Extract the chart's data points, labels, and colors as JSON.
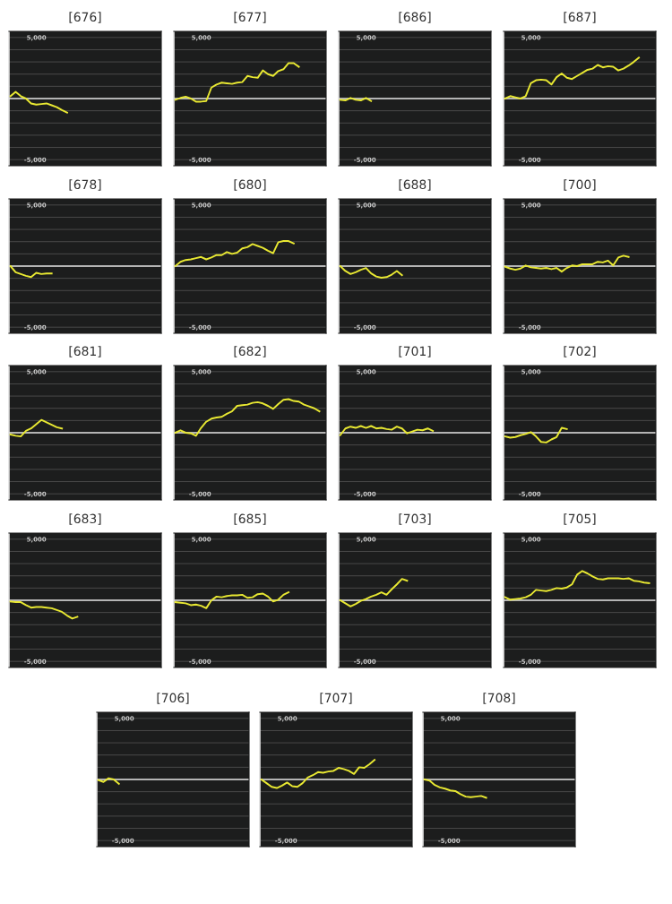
{
  "chart_data": [
    {
      "type": "line",
      "title": "[676]",
      "color": "#e8e832",
      "categories": [
        null,
        null,
        null,
        null,
        null,
        null,
        null,
        null,
        null,
        null,
        null,
        null,
        null,
        null,
        null,
        null,
        null,
        null,
        null,
        null,
        null,
        null,
        null,
        null,
        null,
        null,
        null,
        null,
        null,
        null
      ],
      "values": [
        200,
        550,
        200,
        0,
        -400,
        -500,
        -450,
        -400,
        -550,
        -700,
        -950,
        -1150,
        null,
        null,
        null,
        null,
        null,
        null,
        null,
        null,
        null,
        null,
        null,
        null,
        null,
        null,
        null,
        null,
        null,
        null
      ],
      "ylim": [
        -5500,
        5500
      ],
      "yticks": [
        {
          "value": -5000,
          "label": "-5,000"
        },
        {
          "value": -4000,
          "label": null
        },
        {
          "value": -3000,
          "label": null
        },
        {
          "value": -2000,
          "label": null
        },
        {
          "value": -1000,
          "label": null
        },
        {
          "value": 0,
          "label": null
        },
        {
          "value": 1000,
          "label": null
        },
        {
          "value": 2000,
          "label": null
        },
        {
          "value": 3000,
          "label": null
        },
        {
          "value": 4000,
          "label": null
        },
        {
          "value": 5000,
          "label": "5,000"
        }
      ],
      "grid": "y",
      "tick_labels": "y",
      "ref_lines": [
        {
          "axis": "y",
          "value": 0,
          "color": "#e0e0e0"
        }
      ]
    },
    {
      "type": "line",
      "title": "[677]",
      "color": "#e8e832",
      "categories": [
        null,
        null,
        null,
        null,
        null,
        null,
        null,
        null,
        null,
        null,
        null,
        null,
        null,
        null,
        null,
        null,
        null,
        null,
        null,
        null,
        null,
        null,
        null,
        null,
        null,
        null,
        null,
        null,
        null,
        null
      ],
      "values": [
        -100,
        50,
        150,
        0,
        -250,
        -250,
        -200,
        900,
        1150,
        1300,
        1250,
        1200,
        1300,
        1350,
        1850,
        1750,
        1700,
        2300,
        2000,
        1850,
        2250,
        2400,
        2900,
        2900,
        2600,
        null,
        null,
        null,
        null,
        null
      ],
      "ylim": [
        -5500,
        5500
      ],
      "yticks": [
        {
          "value": -5000,
          "label": "-5,000"
        },
        {
          "value": -4000,
          "label": null
        },
        {
          "value": -3000,
          "label": null
        },
        {
          "value": -2000,
          "label": null
        },
        {
          "value": -1000,
          "label": null
        },
        {
          "value": 0,
          "label": null
        },
        {
          "value": 1000,
          "label": null
        },
        {
          "value": 2000,
          "label": null
        },
        {
          "value": 3000,
          "label": null
        },
        {
          "value": 4000,
          "label": null
        },
        {
          "value": 5000,
          "label": "5,000"
        }
      ],
      "grid": "y",
      "tick_labels": "y",
      "ref_lines": [
        {
          "axis": "y",
          "value": 0,
          "color": "#e0e0e0"
        }
      ]
    },
    {
      "type": "line",
      "title": "[686]",
      "color": "#e8e832",
      "categories": [
        null,
        null,
        null,
        null,
        null,
        null,
        null,
        null,
        null,
        null,
        null,
        null,
        null,
        null,
        null,
        null,
        null,
        null,
        null,
        null,
        null,
        null,
        null,
        null,
        null,
        null,
        null,
        null,
        null,
        null
      ],
      "values": [
        -100,
        -150,
        50,
        -100,
        -150,
        50,
        -200,
        null,
        null,
        null,
        null,
        null,
        null,
        null,
        null,
        null,
        null,
        null,
        null,
        null,
        null,
        null,
        null,
        null,
        null,
        null,
        null,
        null,
        null,
        null
      ],
      "ylim": [
        -5500,
        5500
      ],
      "yticks": [
        {
          "value": -5000,
          "label": "-5,000"
        },
        {
          "value": -4000,
          "label": null
        },
        {
          "value": -3000,
          "label": null
        },
        {
          "value": -2000,
          "label": null
        },
        {
          "value": -1000,
          "label": null
        },
        {
          "value": 0,
          "label": null
        },
        {
          "value": 1000,
          "label": null
        },
        {
          "value": 2000,
          "label": null
        },
        {
          "value": 3000,
          "label": null
        },
        {
          "value": 4000,
          "label": null
        },
        {
          "value": 5000,
          "label": "5,000"
        }
      ],
      "grid": "y",
      "tick_labels": "y",
      "ref_lines": [
        {
          "axis": "y",
          "value": 0,
          "color": "#e0e0e0"
        }
      ]
    },
    {
      "type": "line",
      "title": "[687]",
      "color": "#e8e832",
      "categories": [
        null,
        null,
        null,
        null,
        null,
        null,
        null,
        null,
        null,
        null,
        null,
        null,
        null,
        null,
        null,
        null,
        null,
        null,
        null,
        null,
        null,
        null,
        null,
        null,
        null,
        null,
        null,
        null,
        null,
        null
      ],
      "values": [
        0,
        200,
        100,
        0,
        200,
        1250,
        1500,
        1550,
        1500,
        1150,
        1750,
        2050,
        1700,
        1600,
        1850,
        2100,
        2350,
        2450,
        2750,
        2550,
        2650,
        2600,
        2300,
        2450,
        2700,
        3000,
        3350,
        null,
        null,
        null
      ],
      "ylim": [
        -5500,
        5500
      ],
      "yticks": [
        {
          "value": -5000,
          "label": "-5,000"
        },
        {
          "value": -4000,
          "label": null
        },
        {
          "value": -3000,
          "label": null
        },
        {
          "value": -2000,
          "label": null
        },
        {
          "value": -1000,
          "label": null
        },
        {
          "value": 0,
          "label": null
        },
        {
          "value": 1000,
          "label": null
        },
        {
          "value": 2000,
          "label": null
        },
        {
          "value": 3000,
          "label": null
        },
        {
          "value": 4000,
          "label": null
        },
        {
          "value": 5000,
          "label": "5,000"
        }
      ],
      "grid": "y",
      "tick_labels": "y",
      "ref_lines": [
        {
          "axis": "y",
          "value": 0,
          "color": "#e0e0e0"
        }
      ]
    },
    {
      "type": "line",
      "title": "[678]",
      "color": "#e8e832",
      "categories": [
        null,
        null,
        null,
        null,
        null,
        null,
        null,
        null,
        null,
        null,
        null,
        null,
        null,
        null,
        null,
        null,
        null,
        null,
        null,
        null,
        null,
        null,
        null,
        null,
        null,
        null,
        null,
        null,
        null,
        null
      ],
      "values": [
        0,
        -500,
        -650,
        -800,
        -900,
        -550,
        -650,
        -600,
        -600,
        null,
        null,
        null,
        null,
        null,
        null,
        null,
        null,
        null,
        null,
        null,
        null,
        null,
        null,
        null,
        null,
        null,
        null,
        null,
        null,
        null
      ],
      "ylim": [
        -5500,
        5500
      ],
      "yticks": [
        {
          "value": -5000,
          "label": "-5,000"
        },
        {
          "value": -4000,
          "label": null
        },
        {
          "value": -3000,
          "label": null
        },
        {
          "value": -2000,
          "label": null
        },
        {
          "value": -1000,
          "label": null
        },
        {
          "value": 0,
          "label": null
        },
        {
          "value": 1000,
          "label": null
        },
        {
          "value": 2000,
          "label": null
        },
        {
          "value": 3000,
          "label": null
        },
        {
          "value": 4000,
          "label": null
        },
        {
          "value": 5000,
          "label": "5,000"
        }
      ],
      "grid": "y",
      "tick_labels": "y",
      "ref_lines": [
        {
          "axis": "y",
          "value": 0,
          "color": "#e0e0e0"
        }
      ]
    },
    {
      "type": "line",
      "title": "[680]",
      "color": "#e8e832",
      "categories": [
        null,
        null,
        null,
        null,
        null,
        null,
        null,
        null,
        null,
        null,
        null,
        null,
        null,
        null,
        null,
        null,
        null,
        null,
        null,
        null,
        null,
        null,
        null,
        null,
        null,
        null,
        null,
        null,
        null,
        null
      ],
      "values": [
        0,
        350,
        500,
        550,
        650,
        750,
        550,
        700,
        900,
        900,
        1150,
        1000,
        1100,
        1450,
        1550,
        1800,
        1650,
        1500,
        1250,
        1050,
        1950,
        2050,
        2050,
        1850,
        null,
        null,
        null,
        null,
        null,
        null
      ],
      "ylim": [
        -5500,
        5500
      ],
      "yticks": [
        {
          "value": -5000,
          "label": "-5,000"
        },
        {
          "value": -4000,
          "label": null
        },
        {
          "value": -3000,
          "label": null
        },
        {
          "value": -2000,
          "label": null
        },
        {
          "value": -1000,
          "label": null
        },
        {
          "value": 0,
          "label": null
        },
        {
          "value": 1000,
          "label": null
        },
        {
          "value": 2000,
          "label": null
        },
        {
          "value": 3000,
          "label": null
        },
        {
          "value": 4000,
          "label": null
        },
        {
          "value": 5000,
          "label": "5,000"
        }
      ],
      "grid": "y",
      "tick_labels": "y",
      "ref_lines": [
        {
          "axis": "y",
          "value": 0,
          "color": "#e0e0e0"
        }
      ]
    },
    {
      "type": "line",
      "title": "[688]",
      "color": "#e8e832",
      "categories": [
        null,
        null,
        null,
        null,
        null,
        null,
        null,
        null,
        null,
        null,
        null,
        null,
        null,
        null,
        null,
        null,
        null,
        null,
        null,
        null,
        null,
        null,
        null,
        null,
        null,
        null,
        null,
        null,
        null,
        null
      ],
      "values": [
        0,
        -400,
        -650,
        -500,
        -300,
        -150,
        -600,
        -850,
        -950,
        -900,
        -700,
        -400,
        -750,
        null,
        null,
        null,
        null,
        null,
        null,
        null,
        null,
        null,
        null,
        null,
        null,
        null,
        null,
        null,
        null,
        null
      ],
      "ylim": [
        -5500,
        5500
      ],
      "yticks": [
        {
          "value": -5000,
          "label": "-5,000"
        },
        {
          "value": -4000,
          "label": null
        },
        {
          "value": -3000,
          "label": null
        },
        {
          "value": -2000,
          "label": null
        },
        {
          "value": -1000,
          "label": null
        },
        {
          "value": 0,
          "label": null
        },
        {
          "value": 1000,
          "label": null
        },
        {
          "value": 2000,
          "label": null
        },
        {
          "value": 3000,
          "label": null
        },
        {
          "value": 4000,
          "label": null
        },
        {
          "value": 5000,
          "label": "5,000"
        }
      ],
      "grid": "y",
      "tick_labels": "y",
      "ref_lines": [
        {
          "axis": "y",
          "value": 0,
          "color": "#e0e0e0"
        }
      ]
    },
    {
      "type": "line",
      "title": "[700]",
      "color": "#e8e832",
      "categories": [
        null,
        null,
        null,
        null,
        null,
        null,
        null,
        null,
        null,
        null,
        null,
        null,
        null,
        null,
        null,
        null,
        null,
        null,
        null,
        null,
        null,
        null,
        null,
        null,
        null,
        null,
        null,
        null,
        null,
        null
      ],
      "values": [
        -50,
        -200,
        -300,
        -200,
        50,
        -100,
        -150,
        -200,
        -150,
        -250,
        -150,
        -450,
        -150,
        50,
        0,
        150,
        150,
        150,
        350,
        300,
        450,
        50,
        700,
        850,
        750,
        null,
        null,
        null,
        null,
        null
      ],
      "ylim": [
        -5500,
        5500
      ],
      "yticks": [
        {
          "value": -5000,
          "label": "-5,000"
        },
        {
          "value": -4000,
          "label": null
        },
        {
          "value": -3000,
          "label": null
        },
        {
          "value": -2000,
          "label": null
        },
        {
          "value": -1000,
          "label": null
        },
        {
          "value": 0,
          "label": null
        },
        {
          "value": 1000,
          "label": null
        },
        {
          "value": 2000,
          "label": null
        },
        {
          "value": 3000,
          "label": null
        },
        {
          "value": 4000,
          "label": null
        },
        {
          "value": 5000,
          "label": "5,000"
        }
      ],
      "grid": "y",
      "tick_labels": "y",
      "ref_lines": [
        {
          "axis": "y",
          "value": 0,
          "color": "#e0e0e0"
        }
      ]
    },
    {
      "type": "line",
      "title": "[681]",
      "color": "#e8e832",
      "categories": [
        null,
        null,
        null,
        null,
        null,
        null,
        null,
        null,
        null,
        null,
        null,
        null,
        null,
        null,
        null,
        null,
        null,
        null,
        null,
        null,
        null,
        null,
        null,
        null,
        null,
        null,
        null,
        null,
        null,
        null
      ],
      "values": [
        -150,
        -250,
        -300,
        150,
        350,
        700,
        1050,
        850,
        650,
        450,
        350,
        null,
        null,
        null,
        null,
        null,
        null,
        null,
        null,
        null,
        null,
        null,
        null,
        null,
        null,
        null,
        null,
        null,
        null,
        null
      ],
      "ylim": [
        -5500,
        5500
      ],
      "yticks": [
        {
          "value": -5000,
          "label": "-5,000"
        },
        {
          "value": -4000,
          "label": null
        },
        {
          "value": -3000,
          "label": null
        },
        {
          "value": -2000,
          "label": null
        },
        {
          "value": -1000,
          "label": null
        },
        {
          "value": 0,
          "label": null
        },
        {
          "value": 1000,
          "label": null
        },
        {
          "value": 2000,
          "label": null
        },
        {
          "value": 3000,
          "label": null
        },
        {
          "value": 4000,
          "label": null
        },
        {
          "value": 5000,
          "label": "5,000"
        }
      ],
      "grid": "y",
      "tick_labels": "y",
      "ref_lines": [
        {
          "axis": "y",
          "value": 0,
          "color": "#e0e0e0"
        }
      ]
    },
    {
      "type": "line",
      "title": "[682]",
      "color": "#e8e832",
      "categories": [
        null,
        null,
        null,
        null,
        null,
        null,
        null,
        null,
        null,
        null,
        null,
        null,
        null,
        null,
        null,
        null,
        null,
        null,
        null,
        null,
        null,
        null,
        null,
        null,
        null,
        null,
        null,
        null,
        null,
        null
      ],
      "values": [
        0,
        200,
        0,
        -50,
        -250,
        400,
        900,
        1150,
        1250,
        1300,
        1550,
        1750,
        2200,
        2250,
        2300,
        2450,
        2500,
        2400,
        2200,
        1950,
        2350,
        2700,
        2750,
        2600,
        2550,
        2300,
        2150,
        2000,
        1750,
        null
      ],
      "ylim": [
        -5500,
        5500
      ],
      "yticks": [
        {
          "value": -5000,
          "label": "-5,000"
        },
        {
          "value": -4000,
          "label": null
        },
        {
          "value": -3000,
          "label": null
        },
        {
          "value": -2000,
          "label": null
        },
        {
          "value": -1000,
          "label": null
        },
        {
          "value": 0,
          "label": null
        },
        {
          "value": 1000,
          "label": null
        },
        {
          "value": 2000,
          "label": null
        },
        {
          "value": 3000,
          "label": null
        },
        {
          "value": 4000,
          "label": null
        },
        {
          "value": 5000,
          "label": "5,000"
        }
      ],
      "grid": "y",
      "tick_labels": "y",
      "ref_lines": [
        {
          "axis": "y",
          "value": 0,
          "color": "#e0e0e0"
        }
      ]
    },
    {
      "type": "line",
      "title": "[701]",
      "color": "#e8e832",
      "categories": [
        null,
        null,
        null,
        null,
        null,
        null,
        null,
        null,
        null,
        null,
        null,
        null,
        null,
        null,
        null,
        null,
        null,
        null,
        null,
        null,
        null,
        null,
        null,
        null,
        null,
        null,
        null,
        null,
        null,
        null
      ],
      "values": [
        -200,
        350,
        500,
        400,
        550,
        400,
        550,
        350,
        400,
        300,
        250,
        500,
        350,
        -50,
        100,
        250,
        200,
        350,
        150,
        null,
        null,
        null,
        null,
        null,
        null,
        null,
        null,
        null,
        null,
        null
      ],
      "ylim": [
        -5500,
        5500
      ],
      "yticks": [
        {
          "value": -5000,
          "label": "-5,000"
        },
        {
          "value": -4000,
          "label": null
        },
        {
          "value": -3000,
          "label": null
        },
        {
          "value": -2000,
          "label": null
        },
        {
          "value": -1000,
          "label": null
        },
        {
          "value": 0,
          "label": null
        },
        {
          "value": 1000,
          "label": null
        },
        {
          "value": 2000,
          "label": null
        },
        {
          "value": 3000,
          "label": null
        },
        {
          "value": 4000,
          "label": null
        },
        {
          "value": 5000,
          "label": "5,000"
        }
      ],
      "grid": "y",
      "tick_labels": "y",
      "ref_lines": [
        {
          "axis": "y",
          "value": 0,
          "color": "#e0e0e0"
        }
      ]
    },
    {
      "type": "line",
      "title": "[702]",
      "color": "#e8e832",
      "categories": [
        null,
        null,
        null,
        null,
        null,
        null,
        null,
        null,
        null,
        null,
        null,
        null,
        null,
        null,
        null,
        null,
        null,
        null,
        null,
        null,
        null,
        null,
        null,
        null,
        null,
        null,
        null,
        null,
        null,
        null
      ],
      "values": [
        -300,
        -400,
        -350,
        -200,
        -100,
        50,
        -300,
        -750,
        -800,
        -550,
        -350,
        400,
        300,
        null,
        null,
        null,
        null,
        null,
        null,
        null,
        null,
        null,
        null,
        null,
        null,
        null,
        null,
        null,
        null,
        null
      ],
      "ylim": [
        -5500,
        5500
      ],
      "yticks": [
        {
          "value": -5000,
          "label": "-5,000"
        },
        {
          "value": -4000,
          "label": null
        },
        {
          "value": -3000,
          "label": null
        },
        {
          "value": -2000,
          "label": null
        },
        {
          "value": -1000,
          "label": null
        },
        {
          "value": 0,
          "label": null
        },
        {
          "value": 1000,
          "label": null
        },
        {
          "value": 2000,
          "label": null
        },
        {
          "value": 3000,
          "label": null
        },
        {
          "value": 4000,
          "label": null
        },
        {
          "value": 5000,
          "label": "5,000"
        }
      ],
      "grid": "y",
      "tick_labels": "y",
      "ref_lines": [
        {
          "axis": "y",
          "value": 0,
          "color": "#e0e0e0"
        }
      ]
    },
    {
      "type": "line",
      "title": "[683]",
      "color": "#e8e832",
      "categories": [
        null,
        null,
        null,
        null,
        null,
        null,
        null,
        null,
        null,
        null,
        null,
        null,
        null,
        null,
        null,
        null,
        null,
        null,
        null,
        null,
        null,
        null,
        null,
        null,
        null,
        null,
        null,
        null,
        null,
        null
      ],
      "values": [
        -100,
        -150,
        -150,
        -400,
        -600,
        -550,
        -550,
        -600,
        -650,
        -800,
        -950,
        -1250,
        -1500,
        -1350,
        null,
        null,
        null,
        null,
        null,
        null,
        null,
        null,
        null,
        null,
        null,
        null,
        null,
        null,
        null,
        null
      ],
      "ylim": [
        -5500,
        5500
      ],
      "yticks": [
        {
          "value": -5000,
          "label": "-5,000"
        },
        {
          "value": -4000,
          "label": null
        },
        {
          "value": -3000,
          "label": null
        },
        {
          "value": -2000,
          "label": null
        },
        {
          "value": -1000,
          "label": null
        },
        {
          "value": 0,
          "label": null
        },
        {
          "value": 1000,
          "label": null
        },
        {
          "value": 2000,
          "label": null
        },
        {
          "value": 3000,
          "label": null
        },
        {
          "value": 4000,
          "label": null
        },
        {
          "value": 5000,
          "label": "5,000"
        }
      ],
      "grid": "y",
      "tick_labels": "y",
      "ref_lines": [
        {
          "axis": "y",
          "value": 0,
          "color": "#e0e0e0"
        }
      ]
    },
    {
      "type": "line",
      "title": "[685]",
      "color": "#e8e832",
      "categories": [
        null,
        null,
        null,
        null,
        null,
        null,
        null,
        null,
        null,
        null,
        null,
        null,
        null,
        null,
        null,
        null,
        null,
        null,
        null,
        null,
        null,
        null,
        null,
        null,
        null,
        null,
        null,
        null,
        null,
        null
      ],
      "values": [
        -150,
        -200,
        -250,
        -400,
        -350,
        -450,
        -650,
        0,
        300,
        250,
        350,
        400,
        400,
        450,
        200,
        250,
        500,
        550,
        300,
        -100,
        50,
        450,
        650,
        null,
        null,
        null,
        null,
        null,
        null,
        null
      ],
      "ylim": [
        -5500,
        5500
      ],
      "yticks": [
        {
          "value": -5000,
          "label": "-5,000"
        },
        {
          "value": -4000,
          "label": null
        },
        {
          "value": -3000,
          "label": null
        },
        {
          "value": -2000,
          "label": null
        },
        {
          "value": -1000,
          "label": null
        },
        {
          "value": 0,
          "label": null
        },
        {
          "value": 1000,
          "label": null
        },
        {
          "value": 2000,
          "label": null
        },
        {
          "value": 3000,
          "label": null
        },
        {
          "value": 4000,
          "label": null
        },
        {
          "value": 5000,
          "label": "5,000"
        }
      ],
      "grid": "y",
      "tick_labels": "y",
      "ref_lines": [
        {
          "axis": "y",
          "value": 0,
          "color": "#e0e0e0"
        }
      ]
    },
    {
      "type": "line",
      "title": "[703]",
      "color": "#e8e832",
      "categories": [
        null,
        null,
        null,
        null,
        null,
        null,
        null,
        null,
        null,
        null,
        null,
        null,
        null,
        null,
        null,
        null,
        null,
        null,
        null,
        null,
        null,
        null,
        null,
        null,
        null,
        null,
        null,
        null,
        null,
        null
      ],
      "values": [
        0,
        -250,
        -500,
        -300,
        -50,
        100,
        300,
        450,
        650,
        450,
        900,
        1300,
        1750,
        1600,
        null,
        null,
        null,
        null,
        null,
        null,
        null,
        null,
        null,
        null,
        null,
        null,
        null,
        null,
        null,
        null
      ],
      "ylim": [
        -5500,
        5500
      ],
      "yticks": [
        {
          "value": -5000,
          "label": "-5,000"
        },
        {
          "value": -4000,
          "label": null
        },
        {
          "value": -3000,
          "label": null
        },
        {
          "value": -2000,
          "label": null
        },
        {
          "value": -1000,
          "label": null
        },
        {
          "value": 0,
          "label": null
        },
        {
          "value": 1000,
          "label": null
        },
        {
          "value": 2000,
          "label": null
        },
        {
          "value": 3000,
          "label": null
        },
        {
          "value": 4000,
          "label": null
        },
        {
          "value": 5000,
          "label": "5,000"
        }
      ],
      "grid": "y",
      "tick_labels": "y",
      "ref_lines": [
        {
          "axis": "y",
          "value": 0,
          "color": "#e0e0e0"
        }
      ]
    },
    {
      "type": "line",
      "title": "[705]",
      "color": "#e8e832",
      "categories": [
        null,
        null,
        null,
        null,
        null,
        null,
        null,
        null,
        null,
        null,
        null,
        null,
        null,
        null,
        null,
        null,
        null,
        null,
        null,
        null,
        null,
        null,
        null,
        null,
        null,
        null,
        null,
        null,
        null,
        null
      ],
      "values": [
        250,
        50,
        100,
        150,
        250,
        450,
        850,
        800,
        750,
        850,
        1000,
        950,
        1050,
        1300,
        2100,
        2400,
        2200,
        1950,
        1750,
        1700,
        1800,
        1800,
        1800,
        1750,
        1800,
        1600,
        1550,
        1450,
        1400,
        null
      ],
      "ylim": [
        -5500,
        5500
      ],
      "yticks": [
        {
          "value": -5000,
          "label": "-5,000"
        },
        {
          "value": -4000,
          "label": null
        },
        {
          "value": -3000,
          "label": null
        },
        {
          "value": -2000,
          "label": null
        },
        {
          "value": -1000,
          "label": null
        },
        {
          "value": 0,
          "label": null
        },
        {
          "value": 1000,
          "label": null
        },
        {
          "value": 2000,
          "label": null
        },
        {
          "value": 3000,
          "label": null
        },
        {
          "value": 4000,
          "label": null
        },
        {
          "value": 5000,
          "label": "5,000"
        }
      ],
      "grid": "y",
      "tick_labels": "y",
      "ref_lines": [
        {
          "axis": "y",
          "value": 0,
          "color": "#e0e0e0"
        }
      ]
    },
    {
      "type": "line",
      "title": "[706]",
      "color": "#e8e832",
      "categories": [
        null,
        null,
        null,
        null,
        null,
        null,
        null,
        null,
        null,
        null,
        null,
        null,
        null,
        null,
        null,
        null,
        null,
        null,
        null,
        null,
        null,
        null,
        null,
        null,
        null,
        null,
        null,
        null,
        null,
        null
      ],
      "values": [
        -50,
        -200,
        100,
        0,
        -350,
        null,
        null,
        null,
        null,
        null,
        null,
        null,
        null,
        null,
        null,
        null,
        null,
        null,
        null,
        null,
        null,
        null,
        null,
        null,
        null,
        null,
        null,
        null,
        null,
        null
      ],
      "ylim": [
        -5500,
        5500
      ],
      "yticks": [
        {
          "value": -5000,
          "label": "-5,000"
        },
        {
          "value": -4000,
          "label": null
        },
        {
          "value": -3000,
          "label": null
        },
        {
          "value": -2000,
          "label": null
        },
        {
          "value": -1000,
          "label": null
        },
        {
          "value": 0,
          "label": null
        },
        {
          "value": 1000,
          "label": null
        },
        {
          "value": 2000,
          "label": null
        },
        {
          "value": 3000,
          "label": null
        },
        {
          "value": 4000,
          "label": null
        },
        {
          "value": 5000,
          "label": "5,000"
        }
      ],
      "grid": "y",
      "tick_labels": "y",
      "ref_lines": [
        {
          "axis": "y",
          "value": 0,
          "color": "#e0e0e0"
        }
      ]
    },
    {
      "type": "line",
      "title": "[707]",
      "color": "#e8e832",
      "categories": [
        null,
        null,
        null,
        null,
        null,
        null,
        null,
        null,
        null,
        null,
        null,
        null,
        null,
        null,
        null,
        null,
        null,
        null,
        null,
        null,
        null,
        null,
        null,
        null,
        null,
        null,
        null,
        null,
        null,
        null
      ],
      "values": [
        0,
        -300,
        -600,
        -700,
        -500,
        -250,
        -550,
        -600,
        -300,
        150,
        350,
        600,
        550,
        650,
        700,
        950,
        850,
        700,
        450,
        1000,
        950,
        1250,
        1600,
        null,
        null,
        null,
        null,
        null,
        null,
        null
      ],
      "ylim": [
        -5500,
        5500
      ],
      "yticks": [
        {
          "value": -5000,
          "label": "-5,000"
        },
        {
          "value": -4000,
          "label": null
        },
        {
          "value": -3000,
          "label": null
        },
        {
          "value": -2000,
          "label": null
        },
        {
          "value": -1000,
          "label": null
        },
        {
          "value": 0,
          "label": null
        },
        {
          "value": 1000,
          "label": null
        },
        {
          "value": 2000,
          "label": null
        },
        {
          "value": 3000,
          "label": null
        },
        {
          "value": 4000,
          "label": null
        },
        {
          "value": 5000,
          "label": "5,000"
        }
      ],
      "grid": "y",
      "tick_labels": "y",
      "ref_lines": [
        {
          "axis": "y",
          "value": 0,
          "color": "#e0e0e0"
        }
      ]
    },
    {
      "type": "line",
      "title": "[708]",
      "color": "#e8e832",
      "categories": [
        null,
        null,
        null,
        null,
        null,
        null,
        null,
        null,
        null,
        null,
        null,
        null,
        null,
        null,
        null,
        null,
        null,
        null,
        null,
        null,
        null,
        null,
        null,
        null,
        null,
        null,
        null,
        null,
        null,
        null
      ],
      "values": [
        0,
        -100,
        -450,
        -650,
        -750,
        -900,
        -950,
        -1200,
        -1400,
        -1450,
        -1400,
        -1350,
        -1500,
        null,
        null,
        null,
        null,
        null,
        null,
        null,
        null,
        null,
        null,
        null,
        null,
        null,
        null,
        null,
        null,
        null
      ],
      "ylim": [
        -5500,
        5500
      ],
      "yticks": [
        {
          "value": -5000,
          "label": "-5,000"
        },
        {
          "value": -4000,
          "label": null
        },
        {
          "value": -3000,
          "label": null
        },
        {
          "value": -2000,
          "label": null
        },
        {
          "value": -1000,
          "label": null
        },
        {
          "value": 0,
          "label": null
        },
        {
          "value": 1000,
          "label": null
        },
        {
          "value": 2000,
          "label": null
        },
        {
          "value": 3000,
          "label": null
        },
        {
          "value": 4000,
          "label": null
        },
        {
          "value": 5000,
          "label": "5,000"
        }
      ],
      "grid": "y",
      "tick_labels": "y",
      "ref_lines": [
        {
          "axis": "y",
          "value": 0,
          "color": "#e0e0e0"
        }
      ]
    }
  ]
}
